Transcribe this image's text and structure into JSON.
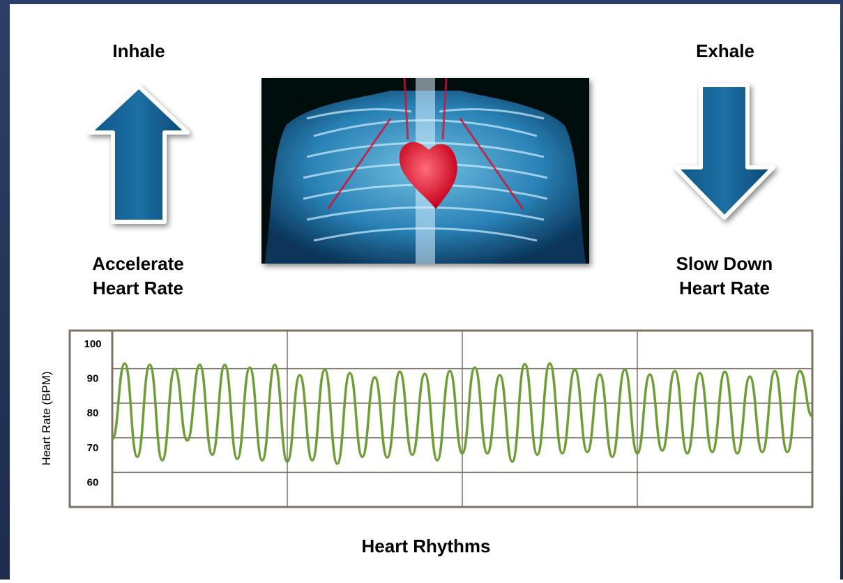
{
  "annotations": {
    "inhale": "Inhale",
    "exhale": "Exhale",
    "accelerate": [
      "Accelerate",
      "Heart Rate"
    ],
    "slow_down": [
      "Slow Down",
      "Heart Rate"
    ]
  },
  "chart_data": {
    "type": "line",
    "title": "Heart Rhythms",
    "ylabel": "Heart Rate (BPM)",
    "ylim": [
      50,
      101
    ],
    "yticks": [
      60,
      70,
      80,
      90,
      100
    ],
    "grid": true,
    "series": [
      {
        "color": "#6e9e36",
        "values": [
          69.6,
          91.5,
          64.5,
          91.1,
          63.5,
          89.9,
          69.2,
          91.1,
          65.1,
          91.1,
          63.9,
          90.3,
          63.5,
          91.1,
          63.1,
          88.1,
          63.5,
          89.7,
          62.5,
          88.7,
          64.5,
          87.5,
          64.3,
          89.1,
          65.1,
          88.5,
          63.5,
          89.3,
          65.5,
          90.3,
          65.5,
          88.1,
          63.1,
          91.3,
          65.1,
          91.5,
          65.5,
          89.7,
          65.9,
          88.3,
          64.5,
          89.7,
          65.5,
          88.3,
          66.3,
          89.3,
          65.5,
          88.7,
          65.9,
          89.1,
          65.5,
          87.7,
          65.9,
          89.3,
          65.9,
          89.3,
          76.2
        ]
      }
    ]
  }
}
